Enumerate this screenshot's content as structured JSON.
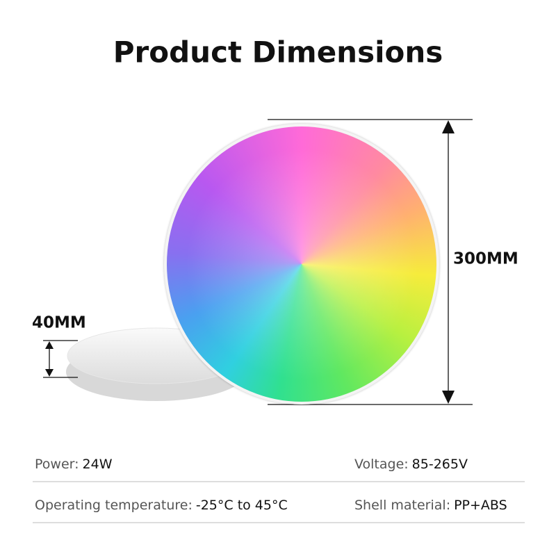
{
  "title": "Product Dimensions",
  "dimensions": {
    "diameter": "300MM",
    "thickness": "40MM"
  },
  "specs": [
    [
      {
        "label": "Power:",
        "value": "24W"
      },
      {
        "label": "Voltage:",
        "value": "85-265V"
      }
    ],
    [
      {
        "label": "Operating temperature:",
        "value": "-25°C to 45°C"
      },
      {
        "label": "Shell material:",
        "value": "PP+ABS"
      }
    ]
  ]
}
